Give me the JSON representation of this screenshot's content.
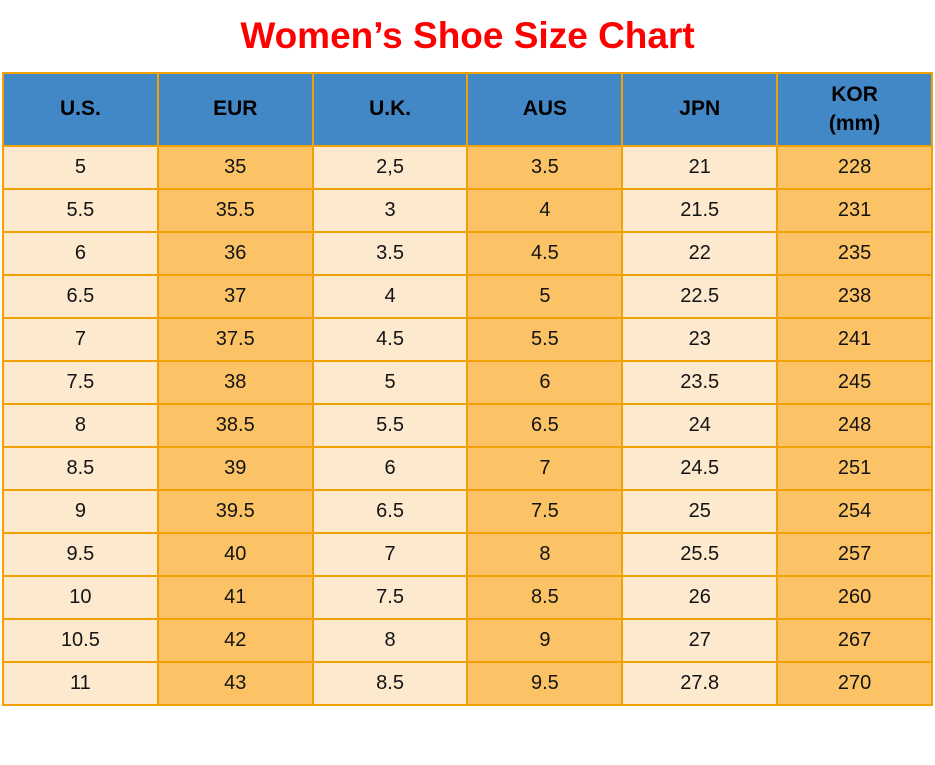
{
  "title": "Women’s Shoe Size Chart",
  "colors": {
    "title_red": "#FF0000",
    "header_blue": "#4288C6",
    "cell_cream": "#FCE9CE",
    "cell_orange": "#FCC266",
    "grid_orange": "#F2A104",
    "text_black": "#141414"
  },
  "header_display": [
    [
      "U.S."
    ],
    [
      "EUR"
    ],
    [
      "U.K."
    ],
    [
      "AUS"
    ],
    [
      "JPN"
    ],
    [
      "KOR",
      "(mm)"
    ]
  ],
  "chart_data": {
    "type": "table",
    "title": "Women’s Shoe Size Chart",
    "columns": [
      "U.S.",
      "EUR",
      "U.K.",
      "AUS",
      "JPN",
      "KOR (mm)"
    ],
    "rows": [
      [
        "5",
        "35",
        "2,5",
        "3.5",
        "21",
        "228"
      ],
      [
        "5.5",
        "35.5",
        "3",
        "4",
        "21.5",
        "231"
      ],
      [
        "6",
        "36",
        "3.5",
        "4.5",
        "22",
        "235"
      ],
      [
        "6.5",
        "37",
        "4",
        "5",
        "22.5",
        "238"
      ],
      [
        "7",
        "37.5",
        "4.5",
        "5.5",
        "23",
        "241"
      ],
      [
        "7.5",
        "38",
        "5",
        "6",
        "23.5",
        "245"
      ],
      [
        "8",
        "38.5",
        "5.5",
        "6.5",
        "24",
        "248"
      ],
      [
        "8.5",
        "39",
        "6",
        "7",
        "24.5",
        "251"
      ],
      [
        "9",
        "39.5",
        "6.5",
        "7.5",
        "25",
        "254"
      ],
      [
        "9.5",
        "40",
        "7",
        "8",
        "25.5",
        "257"
      ],
      [
        "10",
        "41",
        "7.5",
        "8.5",
        "26",
        "260"
      ],
      [
        "10.5",
        "42",
        "8",
        "9",
        "27",
        "267"
      ],
      [
        "11",
        "43",
        "8.5",
        "9.5",
        "27.8",
        "270"
      ]
    ],
    "layout": {
      "header_background": "#4288C6",
      "column_stripe_colors": [
        "#FCE9CE",
        "#FCC266"
      ],
      "grid_color": "#F2A104",
      "title_color": "#FF0000",
      "grid": true
    }
  }
}
